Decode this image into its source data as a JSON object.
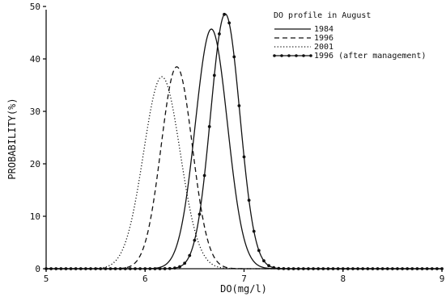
{
  "chart_data": {
    "type": "line",
    "legend_title": "DO profile in August",
    "legend_position": "top-right",
    "xlabel": "DO(mg/l)",
    "ylabel": "PROBABILITY(%)",
    "xlim": [
      5,
      9
    ],
    "ylim": [
      0,
      50
    ],
    "x_ticks": [
      5,
      6,
      7,
      8,
      9
    ],
    "y_ticks": [
      0,
      10,
      20,
      30,
      40,
      50
    ],
    "grid": false,
    "series": [
      {
        "name": "1984",
        "style": "solid",
        "color": "#111111",
        "mean": 6.67,
        "sd": 0.162,
        "peak": 45.7
      },
      {
        "name": "1996",
        "style": "dashed",
        "color": "#111111",
        "mean": 6.32,
        "sd": 0.158,
        "peak": 38.5
      },
      {
        "name": "2001",
        "style": "dotted",
        "color": "#111111",
        "mean": 6.17,
        "sd": 0.185,
        "peak": 36.6
      },
      {
        "name": "1996 (after management)",
        "style": "solid-markers",
        "color": "#111111",
        "mean": 6.81,
        "sd": 0.148,
        "peak": 48.6
      }
    ]
  }
}
